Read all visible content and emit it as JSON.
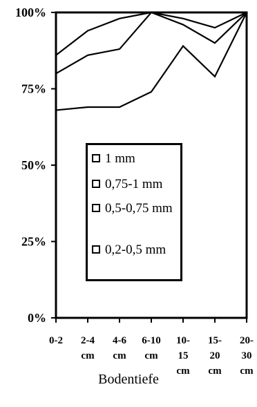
{
  "chart_data": {
    "type": "line",
    "categories": [
      [
        "0-2"
      ],
      [
        "2-4",
        "cm"
      ],
      [
        "4-6",
        "cm"
      ],
      [
        "6-10",
        "cm"
      ],
      [
        "10-",
        "15",
        "cm"
      ],
      [
        "15-",
        "20",
        "cm"
      ],
      [
        "20-",
        "30",
        "cm"
      ]
    ],
    "y_ticks": [
      "0%",
      "25%",
      "50%",
      "75%",
      "100%"
    ],
    "ylim": [
      0,
      100
    ],
    "xlabel": "Bodentiefe",
    "ylabel": "",
    "grid": false,
    "legend_position": "center",
    "series": [
      {
        "name": "1 mm",
        "values": [
          100,
          100,
          100,
          100,
          100,
          100,
          100
        ]
      },
      {
        "name": "0,75-1 mm",
        "values": [
          86,
          94,
          98,
          100,
          98,
          95,
          100
        ]
      },
      {
        "name": "0,5-0,75 mm",
        "values": [
          80,
          86,
          88,
          100,
          96,
          90,
          100
        ]
      },
      {
        "name": "0,2-0,5 mm",
        "values": [
          68,
          69,
          69,
          74,
          89,
          79,
          100
        ]
      }
    ],
    "line_color": "#000000"
  }
}
